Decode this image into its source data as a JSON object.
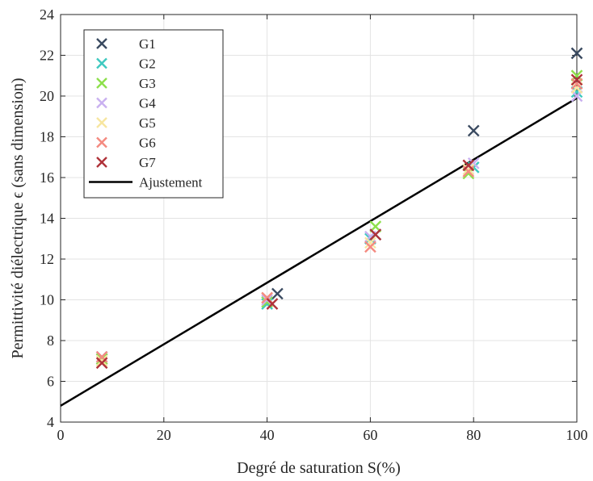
{
  "chart_data": {
    "type": "scatter",
    "title": "",
    "xlabel": "Degré de saturation S(%)",
    "ylabel": "Permittivité diélectrique ϵ (sans dimension)",
    "xlim": [
      0,
      100
    ],
    "ylim": [
      4,
      24
    ],
    "xticks": [
      0,
      20,
      40,
      60,
      80,
      100
    ],
    "yticks": [
      4,
      6,
      8,
      10,
      12,
      14,
      16,
      18,
      20,
      22,
      24
    ],
    "grid": true,
    "legend_position": "top-left",
    "series": [
      {
        "name": "G1",
        "color": "#3a4a60",
        "marker": "x",
        "x": [
          8,
          42,
          61,
          80,
          100
        ],
        "y": [
          7.1,
          10.3,
          13.2,
          18.3,
          22.1
        ]
      },
      {
        "name": "G2",
        "color": "#3fc9c0",
        "marker": "x",
        "x": [
          8,
          40,
          60,
          80,
          100
        ],
        "y": [
          7.2,
          9.8,
          13.0,
          16.5,
          20.2
        ]
      },
      {
        "name": "G3",
        "color": "#8ee04c",
        "marker": "x",
        "x": [
          8,
          40,
          61,
          79,
          100
        ],
        "y": [
          7.1,
          9.9,
          13.6,
          16.2,
          21.0
        ]
      },
      {
        "name": "G4",
        "color": "#c9b0f0",
        "marker": "x",
        "x": [
          8,
          40,
          60,
          80,
          100
        ],
        "y": [
          7.2,
          10.0,
          13.1,
          16.7,
          20.0
        ]
      },
      {
        "name": "G5",
        "color": "#f7e6a0",
        "marker": "x",
        "x": [
          8,
          40,
          60,
          79,
          100
        ],
        "y": [
          7.0,
          10.1,
          12.8,
          16.4,
          20.4
        ]
      },
      {
        "name": "G6",
        "color": "#f48a80",
        "marker": "x",
        "x": [
          8,
          40,
          60,
          79,
          100
        ],
        "y": [
          7.2,
          10.1,
          12.6,
          16.3,
          20.6
        ]
      },
      {
        "name": "G7",
        "color": "#b0333a",
        "marker": "x",
        "x": [
          8,
          41,
          61,
          79,
          100
        ],
        "y": [
          6.9,
          9.8,
          13.2,
          16.6,
          20.8
        ]
      }
    ],
    "fit_line": {
      "name": "Ajustement",
      "color": "#000000",
      "x": [
        0,
        100
      ],
      "y": [
        4.8,
        19.9
      ]
    }
  }
}
